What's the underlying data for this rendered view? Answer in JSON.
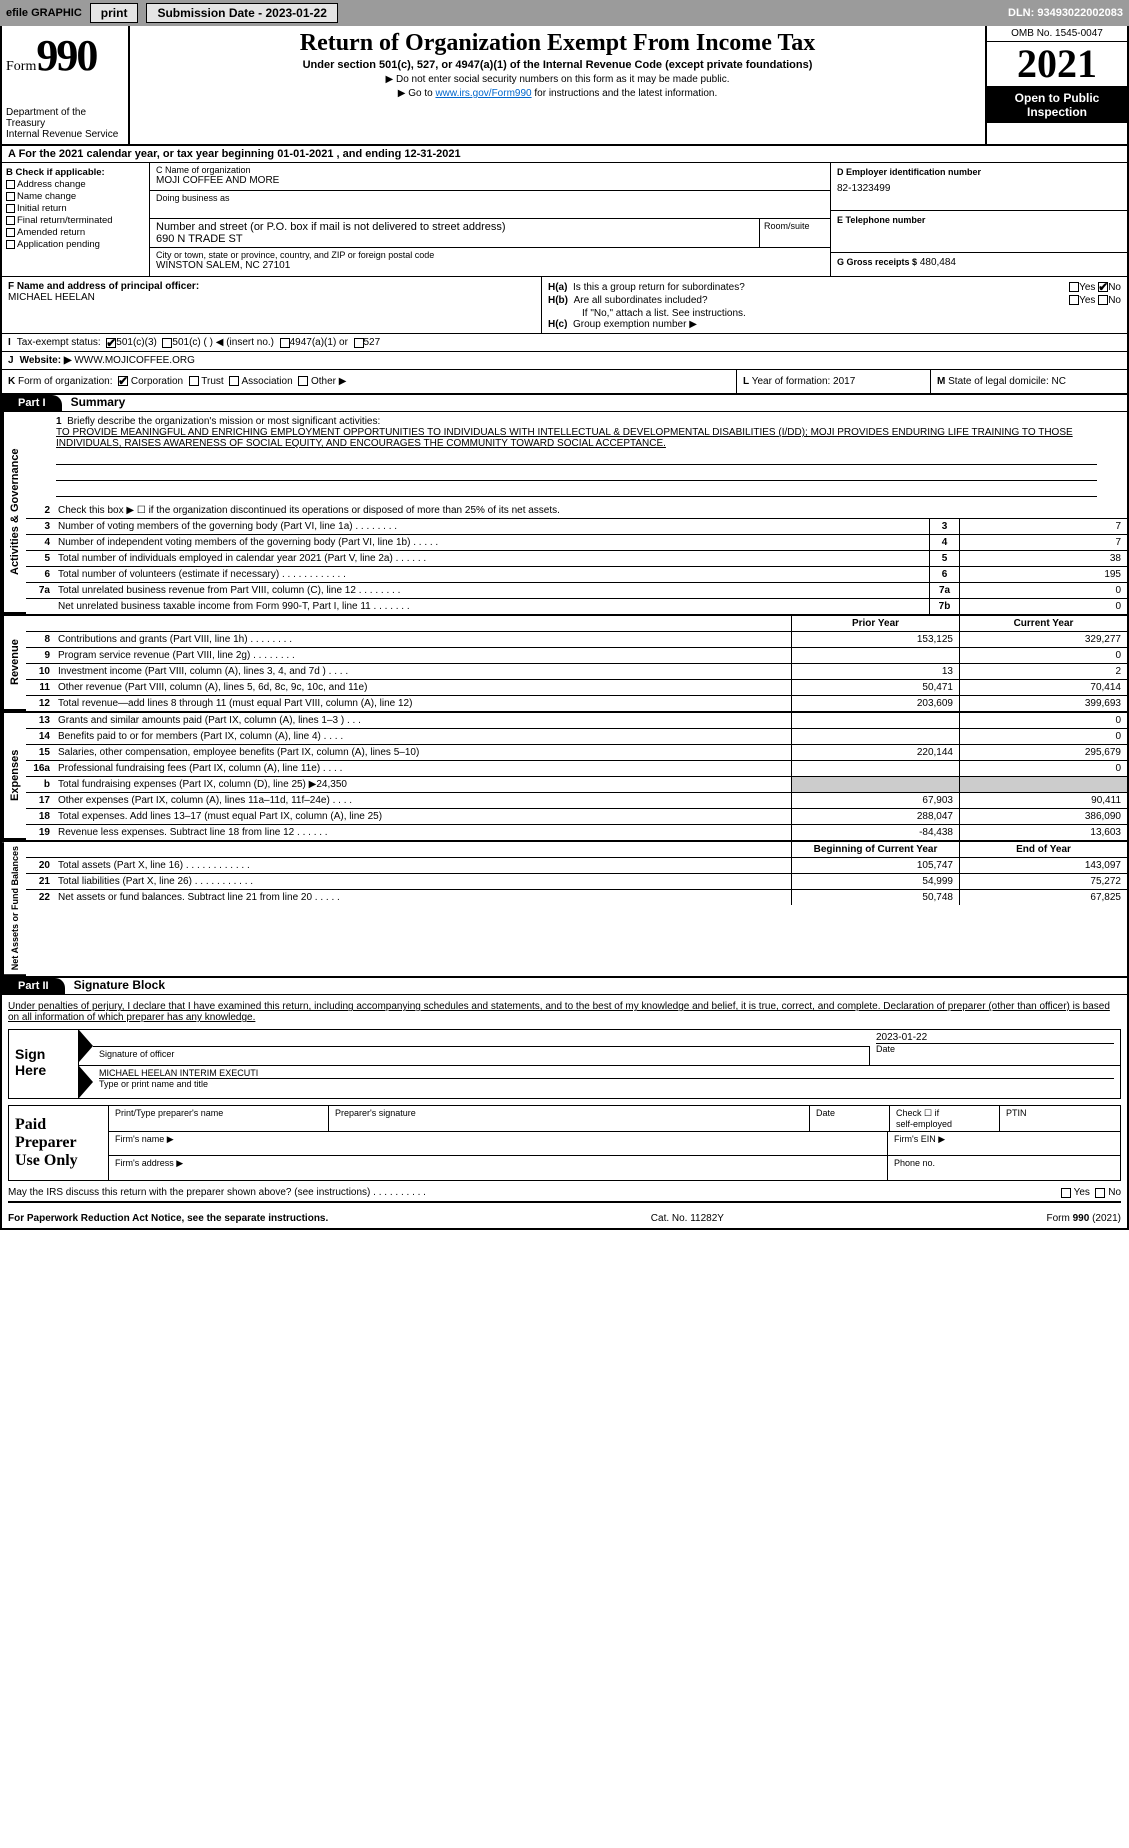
{
  "topbar": {
    "efile": "efile GRAPHIC",
    "print": "print",
    "subdate_label": "Submission Date - 2023-01-22",
    "dln_label": "DLN: 93493022002083"
  },
  "header": {
    "form_prefix": "Form",
    "form_num": "990",
    "dept1": "Department of the Treasury",
    "dept2": "Internal Revenue Service",
    "title": "Return of Organization Exempt From Income Tax",
    "sub": "Under section 501(c), 527, or 4947(a)(1) of the Internal Revenue Code (except private foundations)",
    "note1": "▶ Do not enter social security numbers on this form as it may be made public.",
    "note2_pre": "▶ Go to ",
    "note2_link": "www.irs.gov/Form990",
    "note2_post": " for instructions and the latest information.",
    "omb": "OMB No. 1545-0047",
    "year": "2021",
    "public1": "Open to Public",
    "public2": "Inspection"
  },
  "rowA": "A For the 2021 calendar year, or tax year beginning 01-01-2021    , and ending 12-31-2021",
  "colB": {
    "hd": "B Check if applicable:",
    "o1": "Address change",
    "o2": "Name change",
    "o3": "Initial return",
    "o4": "Final return/terminated",
    "o5": "Amended return",
    "o6": "Application pending"
  },
  "colC": {
    "name_lab": "C Name of organization",
    "name": "MOJI COFFEE AND MORE",
    "dba_lab": "Doing business as",
    "addr_lab": "Number and street (or P.O. box if mail is not delivered to street address)",
    "room_lab": "Room/suite",
    "addr": "690 N TRADE ST",
    "city_lab": "City or town, state or province, country, and ZIP or foreign postal code",
    "city": "WINSTON SALEM, NC  27101"
  },
  "colD": {
    "ein_lab": "D Employer identification number",
    "ein": "82-1323499",
    "tel_lab": "E Telephone number",
    "gross_lab": "G Gross receipts $",
    "gross": "480,484"
  },
  "colF": {
    "lab": "F  Name and address of principal officer:",
    "name": "MICHAEL HEELAN"
  },
  "colH": {
    "a_lab": "H(a)",
    "a_text": "Is this a group return for subordinates?",
    "b_lab": "H(b)",
    "b_text": "Are all subordinates included?",
    "b_note": "If \"No,\" attach a list. See instructions.",
    "c_lab": "H(c)",
    "c_text": "Group exemption number ▶",
    "yes": "Yes",
    "no": "No"
  },
  "lineI": {
    "tag": "I",
    "label": "Tax-exempt status:",
    "o1": "501(c)(3)",
    "o2": "501(c) (   ) ◀ (insert no.)",
    "o3": "4947(a)(1) or",
    "o4": "527"
  },
  "lineJ": {
    "tag": "J",
    "label": "Website: ▶",
    "val": "WWW.MOJICOFFEE.ORG"
  },
  "lineK": {
    "tag": "K",
    "label": "Form of organization:",
    "o1": "Corporation",
    "o2": "Trust",
    "o3": "Association",
    "o4": "Other ▶"
  },
  "lineL": {
    "lab": "L",
    "text": "Year of formation: 2017"
  },
  "lineM": {
    "lab": "M",
    "text": "State of legal domicile: NC"
  },
  "part1": {
    "hdr": "Part I",
    "title": "Summary"
  },
  "mission": {
    "num": "1",
    "label": "Briefly describe the organization's mission or most significant activities:",
    "text": "TO PROVIDE MEANINGFUL AND ENRICHING EMPLOYMENT OPPORTUNITIES TO INDIVIDUALS WITH INTELLECTUAL & DEVELOPMENTAL DISABILITIES (I/DD); MOJI PROVIDES ENDURING LIFE TRAINING TO THOSE INDIVIDUALS, RAISES AWARENESS OF SOCIAL EQUITY, AND ENCOURAGES THE COMMUNITY TOWARD SOCIAL ACCEPTANCE."
  },
  "vtabs": {
    "gov": "Activities & Governance",
    "rev": "Revenue",
    "exp": "Expenses",
    "net": "Net Assets or Fund Balances"
  },
  "govlines": [
    {
      "n": "2",
      "t": "Check this box ▶ ☐  if the organization discontinued its operations or disposed of more than 25% of its net assets."
    },
    {
      "n": "3",
      "t": "Number of voting members of the governing body (Part VI, line 1a)   .    .    .    .    .    .    .    .",
      "b": "3",
      "v": "7"
    },
    {
      "n": "4",
      "t": "Number of independent voting members of the governing body (Part VI, line 1b)   .    .    .    .    .",
      "b": "4",
      "v": "7"
    },
    {
      "n": "5",
      "t": "Total number of individuals employed in calendar year 2021 (Part V, line 2a)   .    .    .    .    .    .",
      "b": "5",
      "v": "38"
    },
    {
      "n": "6",
      "t": "Total number of volunteers (estimate if necessary)    .    .    .    .    .    .    .    .    .    .    .    .",
      "b": "6",
      "v": "195"
    },
    {
      "n": "7a",
      "t": "Total unrelated business revenue from Part VIII, column (C), line 12   .    .    .    .    .    .    .    .",
      "b": "7a",
      "v": "0"
    },
    {
      "n": "",
      "t": "Net unrelated business taxable income from Form 990-T, Part I, line 11   .    .    .    .    .    .    .",
      "b": "7b",
      "v": "0"
    }
  ],
  "colheads": {
    "prior": "Prior Year",
    "current": "Current Year",
    "begin": "Beginning of Current Year",
    "end": "End of Year"
  },
  "revlines": [
    {
      "n": "8",
      "t": "Contributions and grants (Part VIII, line 1h)   .    .    .    .    .    .    .    .",
      "p": "153,125",
      "c": "329,277"
    },
    {
      "n": "9",
      "t": "Program service revenue (Part VIII, line 2g)   .    .    .    .    .    .    .    .",
      "p": "",
      "c": "0"
    },
    {
      "n": "10",
      "t": "Investment income (Part VIII, column (A), lines 3, 4, and 7d )   .    .    .    .",
      "p": "13",
      "c": "2"
    },
    {
      "n": "11",
      "t": "Other revenue (Part VIII, column (A), lines 5, 6d, 8c, 9c, 10c, and 11e)",
      "p": "50,471",
      "c": "70,414"
    },
    {
      "n": "12",
      "t": "Total revenue—add lines 8 through 11 (must equal Part VIII, column (A), line 12)",
      "p": "203,609",
      "c": "399,693"
    }
  ],
  "explines": [
    {
      "n": "13",
      "t": "Grants and similar amounts paid (Part IX, column (A), lines 1–3 )  .    .    .",
      "p": "",
      "c": "0"
    },
    {
      "n": "14",
      "t": "Benefits paid to or for members (Part IX, column (A), line 4)  .    .    .    .",
      "p": "",
      "c": "0"
    },
    {
      "n": "15",
      "t": "Salaries, other compensation, employee benefits (Part IX, column (A), lines 5–10)",
      "p": "220,144",
      "c": "295,679"
    },
    {
      "n": "16a",
      "t": "Professional fundraising fees (Part IX, column (A), line 11e)   .    .    .    .",
      "p": "",
      "c": "0"
    },
    {
      "n": "b",
      "t": "Total fundraising expenses (Part IX, column (D), line 25) ▶24,350",
      "p": "g",
      "c": "g"
    },
    {
      "n": "17",
      "t": "Other expenses (Part IX, column (A), lines 11a–11d, 11f–24e)   .    .    .    .",
      "p": "67,903",
      "c": "90,411"
    },
    {
      "n": "18",
      "t": "Total expenses. Add lines 13–17 (must equal Part IX, column (A), line 25)",
      "p": "288,047",
      "c": "386,090"
    },
    {
      "n": "19",
      "t": "Revenue less expenses. Subtract line 18 from line 12   .    .    .    .    .    .",
      "p": "-84,438",
      "c": "13,603"
    }
  ],
  "netlines": [
    {
      "n": "20",
      "t": "Total assets (Part X, line 16)  .    .    .    .    .    .    .    .    .    .    .    .",
      "p": "105,747",
      "c": "143,097"
    },
    {
      "n": "21",
      "t": "Total liabilities (Part X, line 26)   .    .    .    .    .    .    .    .    .    .    .",
      "p": "54,999",
      "c": "75,272"
    },
    {
      "n": "22",
      "t": "Net assets or fund balances. Subtract line 21 from line 20    .    .    .    .    .",
      "p": "50,748",
      "c": "67,825"
    }
  ],
  "part2": {
    "hdr": "Part II",
    "title": "Signature Block"
  },
  "sig": {
    "decl": "Under penalties of perjury, I declare that I have examined this return, including accompanying schedules and statements, and to the best of my knowledge and belief, it is true, correct, and complete. Declaration of preparer (other than officer) is based on all information of which preparer has any knowledge.",
    "here": "Sign Here",
    "sig_lab": "Signature of officer",
    "date": "2023-01-22",
    "date_lab": "Date",
    "name": "MICHAEL HEELAN  INTERIM EXECUTI",
    "name_lab": "Type or print name and title"
  },
  "prep": {
    "title": "Paid Preparer Use Only",
    "r1c1": "Print/Type preparer's name",
    "r1c2": "Preparer's signature",
    "r1c3": "Date",
    "r1c4a": "Check ☐ if",
    "r1c4b": "self-employed",
    "r1c5": "PTIN",
    "r2c1": "Firm's name    ▶",
    "r2c2": "Firm's EIN ▶",
    "r3c1": "Firm's address ▶",
    "r3c2": "Phone no."
  },
  "discuss": "May the IRS discuss this return with the preparer shown above? (see instructions)   .    .    .    .    .    .    .    .    .    .",
  "footer": {
    "l": "For Paperwork Reduction Act Notice, see the separate instructions.",
    "m": "Cat. No. 11282Y",
    "r": "Form 990 (2021)"
  }
}
